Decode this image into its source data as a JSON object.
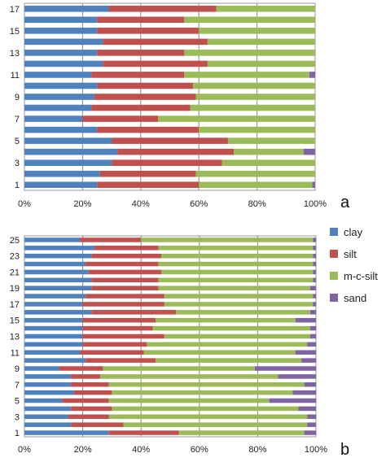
{
  "chart_data": [
    {
      "type": "bar",
      "orientation": "horizontal",
      "stacked": true,
      "panel_label": "a",
      "categories": [
        "1",
        "2",
        "3",
        "4",
        "5",
        "6",
        "7",
        "8",
        "9",
        "10",
        "11",
        "12",
        "13",
        "14",
        "15",
        "16",
        "17"
      ],
      "category_tick_labels": [
        "1",
        "3",
        "5",
        "7",
        "9",
        "11",
        "13",
        "15",
        "17"
      ],
      "series": [
        {
          "name": "clay",
          "values": [
            25,
            26,
            30,
            32,
            30,
            25,
            20,
            23,
            24,
            25,
            23,
            27,
            25,
            27,
            25,
            25,
            29
          ]
        },
        {
          "name": "silt",
          "values": [
            35,
            33,
            38,
            40,
            40,
            35,
            26,
            34,
            35,
            33,
            32,
            36,
            30,
            36,
            35,
            30,
            37
          ]
        },
        {
          "name": "m-c-silt",
          "values": [
            39,
            41,
            32,
            24,
            30,
            40,
            54,
            43,
            41,
            42,
            43,
            37,
            45,
            37,
            40,
            45,
            34
          ]
        },
        {
          "name": "sand",
          "values": [
            1,
            0,
            0,
            4,
            0,
            0,
            0,
            0,
            0,
            0,
            2,
            0,
            0,
            0,
            0,
            0,
            0
          ]
        }
      ],
      "xlim": [
        0,
        100
      ],
      "x_tick_labels": [
        "0%",
        "20%",
        "40%",
        "60%",
        "80%",
        "100%"
      ],
      "grid": "vertical",
      "legend": "none"
    },
    {
      "type": "bar",
      "orientation": "horizontal",
      "stacked": true,
      "panel_label": "b",
      "categories": [
        "1",
        "2",
        "3",
        "4",
        "5",
        "6",
        "7",
        "8",
        "9",
        "10",
        "11",
        "12",
        "13",
        "14",
        "15",
        "16",
        "17",
        "18",
        "19",
        "20",
        "21",
        "22",
        "23",
        "24",
        "25"
      ],
      "category_tick_labels": [
        "1",
        "3",
        "5",
        "7",
        "9",
        "11",
        "13",
        "15",
        "17",
        "19",
        "21",
        "23",
        "25"
      ],
      "series": [
        {
          "name": "clay",
          "values": [
            29,
            16,
            15,
            16,
            13,
            17,
            16,
            16,
            12,
            21,
            19,
            20,
            20,
            20,
            20,
            23,
            20,
            21,
            23,
            23,
            22,
            21,
            23,
            24,
            19
          ]
        },
        {
          "name": "silt",
          "values": [
            24,
            18,
            14,
            14,
            16,
            13,
            13,
            10,
            15,
            24,
            22,
            22,
            28,
            24,
            25,
            29,
            28,
            27,
            23,
            23,
            25,
            25,
            24,
            22,
            21
          ]
        },
        {
          "name": "m-c-silt",
          "values": [
            43,
            63,
            68,
            64,
            55,
            62,
            67,
            61,
            52,
            50,
            52,
            55,
            50,
            54,
            48,
            46,
            51,
            51,
            52,
            53,
            52,
            53,
            52,
            53,
            59
          ]
        },
        {
          "name": "sand",
          "values": [
            4,
            3,
            3,
            6,
            16,
            8,
            4,
            13,
            21,
            5,
            7,
            3,
            2,
            2,
            7,
            2,
            1,
            1,
            2,
            1,
            1,
            1,
            1,
            1,
            1
          ]
        }
      ],
      "xlim": [
        0,
        100
      ],
      "x_tick_labels": [
        "0%",
        "20%",
        "40%",
        "60%",
        "80%",
        "100%"
      ],
      "grid": "vertical",
      "legend": "right"
    }
  ],
  "colors": {
    "clay": "#4f81bd",
    "silt": "#c0504d",
    "m-c-silt": "#9bbb59",
    "sand": "#8064a2"
  },
  "legend": {
    "items": [
      {
        "name": "clay",
        "color": "#4f81bd"
      },
      {
        "name": "silt",
        "color": "#c0504d"
      },
      {
        "name": "m-c-silt",
        "color": "#9bbb59"
      },
      {
        "name": "sand",
        "color": "#8064a2"
      }
    ]
  }
}
